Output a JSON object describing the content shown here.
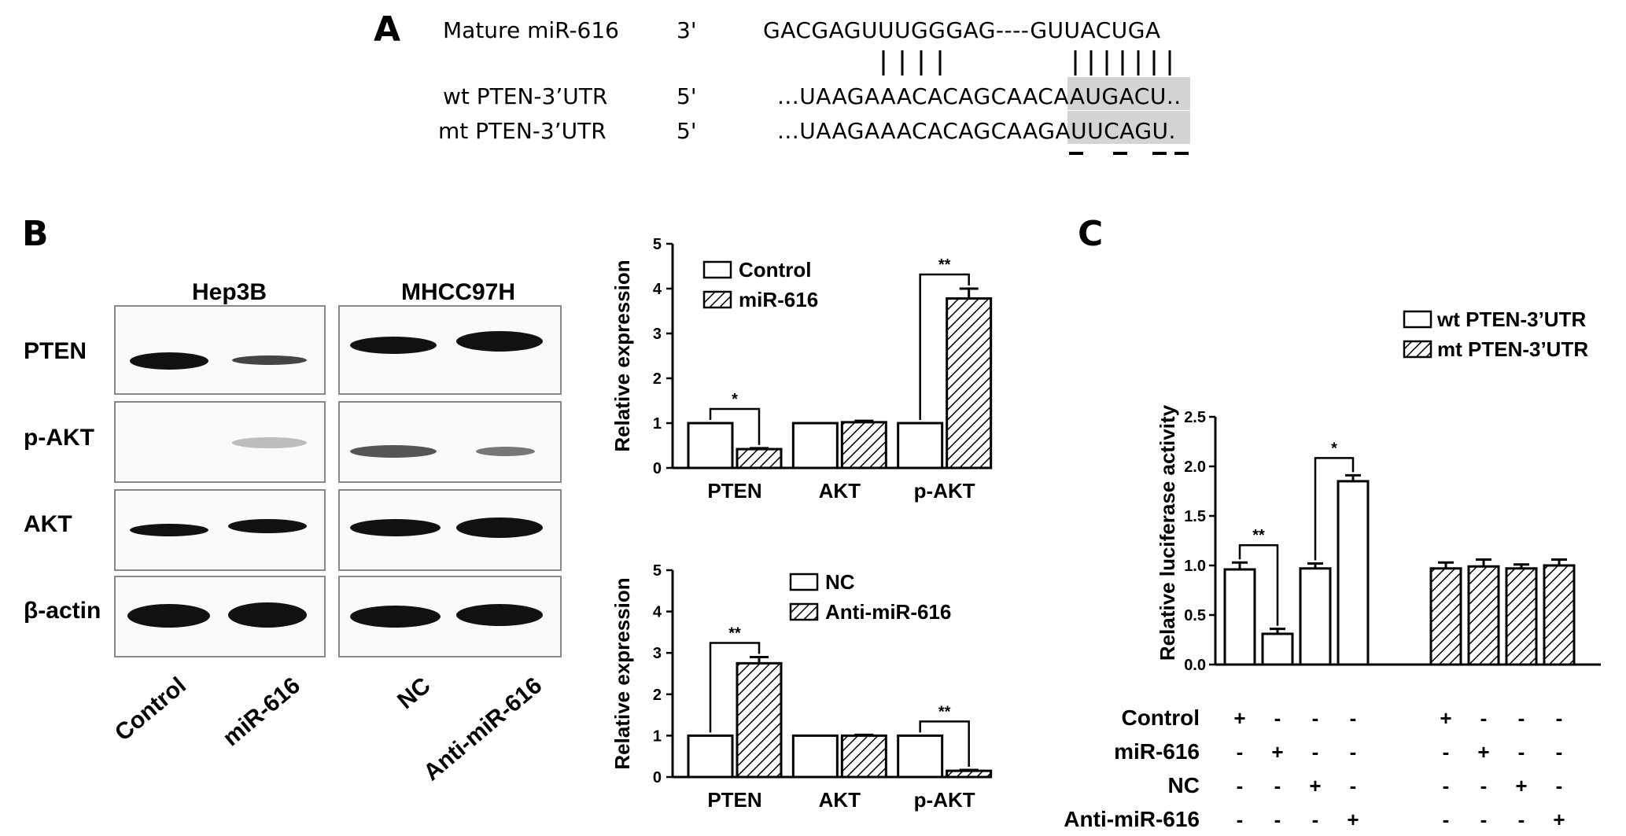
{
  "panel_a": {
    "letter": "A",
    "rows": [
      {
        "label": "Mature miR-616",
        "end": "3'",
        "seq": "GACGAGUUUGGGAG----GUUACUGA"
      },
      {
        "label": "wt PTEN-3’UTR",
        "end": "5'",
        "seq": "...UAAGAAACACAGCAACAAUGACU.."
      },
      {
        "label": "mt PTEN-3’UTR",
        "end": "5'",
        "seq": "...UAAGAAACACAGCAAGAUUCAGU."
      }
    ],
    "highlight_color": "#d4d4d4"
  },
  "panel_b": {
    "letter": "B",
    "cell_lines": [
      "Hep3B",
      "MHCC97H"
    ],
    "proteins": [
      "PTEN",
      "p-AKT",
      "AKT",
      "β-actin"
    ],
    "lanes": [
      "Control",
      "miR-616",
      "NC",
      "Anti-miR-616"
    ]
  },
  "panel_c": {
    "letter": "C"
  },
  "chart_data": [
    {
      "type": "bar",
      "id": "B-top",
      "ylabel": "Relative expression",
      "ylim": [
        0,
        5
      ],
      "yticks": [
        "0",
        "1",
        "2",
        "3",
        "4",
        "5"
      ],
      "categories": [
        "PTEN",
        "AKT",
        "p-AKT"
      ],
      "series": [
        {
          "name": "Control",
          "pattern": "open",
          "values": [
            1.0,
            1.0,
            1.0
          ],
          "errors": [
            0,
            0,
            0
          ]
        },
        {
          "name": "miR-616",
          "pattern": "hatched",
          "values": [
            0.42,
            1.02,
            3.78
          ],
          "errors": [
            0.02,
            0.03,
            0.22
          ]
        }
      ],
      "significance": [
        {
          "category": "PTEN",
          "label": "*"
        },
        {
          "category": "p-AKT",
          "label": "**"
        }
      ],
      "legend_position": "top-left"
    },
    {
      "type": "bar",
      "id": "B-bottom",
      "ylabel": "Relative expression",
      "ylim": [
        0,
        5
      ],
      "yticks": [
        "0",
        "1",
        "2",
        "3",
        "4",
        "5"
      ],
      "categories": [
        "PTEN",
        "AKT",
        "p-AKT"
      ],
      "series": [
        {
          "name": "NC",
          "pattern": "open",
          "values": [
            1.0,
            1.0,
            1.0
          ],
          "errors": [
            0,
            0,
            0
          ]
        },
        {
          "name": "Anti-miR-616",
          "pattern": "hatched",
          "values": [
            2.75,
            1.0,
            0.15
          ],
          "errors": [
            0.15,
            0.02,
            0.02
          ]
        }
      ],
      "significance": [
        {
          "category": "PTEN",
          "label": "**"
        },
        {
          "category": "p-AKT",
          "label": "**"
        }
      ],
      "legend_position": "top-right"
    },
    {
      "type": "bar",
      "id": "C",
      "ylabel": "Relative luciferase activity",
      "ylim": [
        0,
        2.5
      ],
      "yticks": [
        "0.0",
        "0.5",
        "1.0",
        "1.5",
        "2.0",
        "2.5"
      ],
      "series": [
        {
          "name": "wt PTEN-3’UTR",
          "pattern": "open",
          "values": [
            0.96,
            0.31,
            0.97,
            1.85
          ],
          "errors": [
            0.07,
            0.05,
            0.05,
            0.06
          ]
        },
        {
          "name": "mt PTEN-3’UTR",
          "pattern": "hatched",
          "values": [
            0.97,
            0.99,
            0.97,
            1.0
          ],
          "errors": [
            0.06,
            0.07,
            0.04,
            0.06
          ]
        }
      ],
      "significance": [
        {
          "pair": [
            0,
            1
          ],
          "label": "**"
        },
        {
          "pair": [
            2,
            3
          ],
          "label": "*"
        }
      ],
      "condition_rows": [
        {
          "label": "Control",
          "marks": [
            "+",
            "-",
            "-",
            "-",
            "+",
            "-",
            "-",
            "-"
          ]
        },
        {
          "label": "miR-616",
          "marks": [
            "-",
            "+",
            "-",
            "-",
            "-",
            "+",
            "-",
            "-"
          ]
        },
        {
          "label": "NC",
          "marks": [
            "-",
            "-",
            "+",
            "-",
            "-",
            "-",
            "+",
            "-"
          ]
        },
        {
          "label": "Anti-miR-616",
          "marks": [
            "-",
            "-",
            "-",
            "+",
            "-",
            "-",
            "-",
            "+"
          ]
        }
      ],
      "legend_position": "top-right"
    }
  ]
}
